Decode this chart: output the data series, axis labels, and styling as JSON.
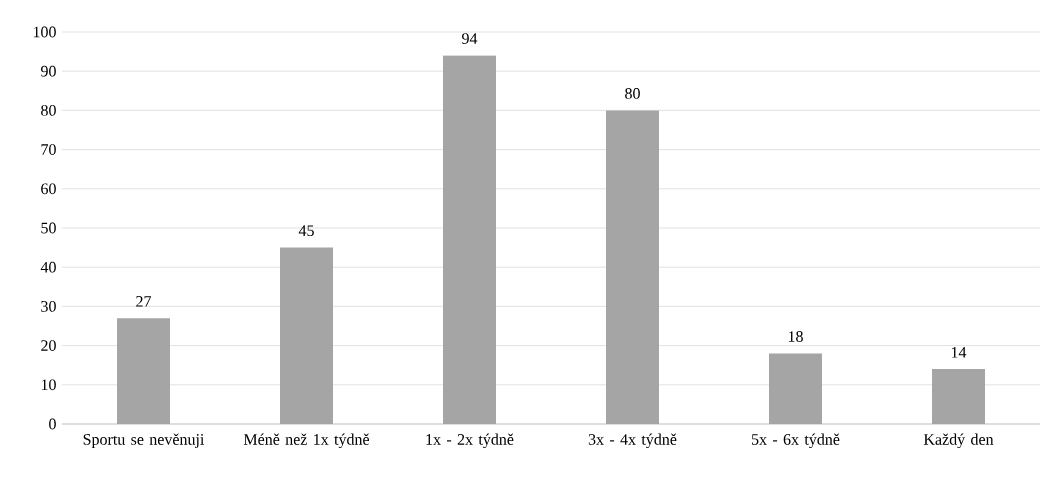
{
  "chart_data": {
    "type": "bar",
    "categories": [
      "Sportu se nevěnuji",
      "Méně než 1x týdně",
      "1x - 2x týdně",
      "3x - 4x týdně",
      "5x - 6x týdně",
      "Každý den"
    ],
    "values": [
      27,
      45,
      94,
      80,
      18,
      14
    ],
    "color": "#a5a5a5",
    "ylim": [
      0,
      100
    ],
    "yticks": [
      0,
      10,
      20,
      30,
      40,
      50,
      60,
      70,
      80,
      90,
      100
    ],
    "grid": "y",
    "data_labels": true
  }
}
